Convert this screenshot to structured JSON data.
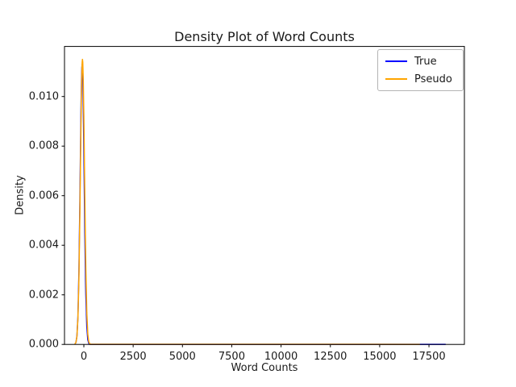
{
  "chart_data": {
    "type": "line",
    "title": "Density Plot of Word Counts",
    "xlabel": "Word Counts",
    "ylabel": "Density",
    "xlim": [
      -981,
      19297
    ],
    "ylim": [
      0,
      0.01202
    ],
    "grid": false,
    "x_tick_values": [
      0,
      2500,
      5000,
      7500,
      10000,
      12500,
      15000,
      17500
    ],
    "x_tick_labels": [
      "0",
      "2500",
      "5000",
      "7500",
      "10000",
      "12500",
      "15000",
      "17500"
    ],
    "y_tick_values": [
      0,
      0.002,
      0.004,
      0.006,
      0.008,
      0.01
    ],
    "y_tick_labels": [
      "0.000",
      "0.002",
      "0.004",
      "0.006",
      "0.008",
      "0.010"
    ],
    "axis_color": "#000000",
    "legend": {
      "position": "upper right",
      "entries": [
        {
          "label": "True",
          "color": "#0000ff"
        },
        {
          "label": "Pseudo",
          "color": "#ffa500"
        }
      ]
    },
    "series": [
      {
        "name": "True",
        "color": "#0000ff",
        "points": [
          [
            -450,
            1.45e-05
          ],
          [
            -400,
            7.91e-05
          ],
          [
            -350,
            0.000338
          ],
          [
            -300,
            0.00112
          ],
          [
            -250,
            0.0029
          ],
          [
            -200,
            0.00583
          ],
          [
            -150,
            0.00915
          ],
          [
            -120,
            0.01063
          ],
          [
            -100,
            0.01117
          ],
          [
            -85,
            0.0113
          ],
          [
            -70,
            0.01117
          ],
          [
            -50,
            0.01063
          ],
          [
            -25,
            0.00944
          ],
          [
            0,
            0.00787
          ],
          [
            25,
            0.00617
          ],
          [
            50,
            0.00454
          ],
          [
            75,
            0.00314
          ],
          [
            100,
            0.00204
          ],
          [
            150,
            0.000714
          ],
          [
            200,
            0.000194
          ],
          [
            250,
            4.13e-05
          ],
          [
            300,
            6.6e-06
          ],
          [
            400,
            2e-06
          ],
          [
            1000,
            2e-06
          ],
          [
            5000,
            2e-06
          ],
          [
            10000,
            2e-06
          ],
          [
            15000,
            2e-06
          ],
          [
            17000,
            2e-06
          ],
          [
            18000,
            2e-06
          ],
          [
            18350,
            1e-06
          ]
        ]
      },
      {
        "name": "Pseudo",
        "color": "#ffa500",
        "points": [
          [
            -460,
            1.15e-05
          ],
          [
            -400,
            8.24e-05
          ],
          [
            -350,
            0.000328
          ],
          [
            -300,
            0.00105
          ],
          [
            -250,
            0.00264
          ],
          [
            -200,
            0.00535
          ],
          [
            -150,
            0.0086
          ],
          [
            -120,
            0.01027
          ],
          [
            -100,
            0.01103
          ],
          [
            -85,
            0.01138
          ],
          [
            -70,
            0.0115
          ],
          [
            -55,
            0.01138
          ],
          [
            -30,
            0.01069
          ],
          [
            0,
            0.00921
          ],
          [
            25,
            0.00764
          ],
          [
            50,
            0.00598
          ],
          [
            75,
            0.00443
          ],
          [
            100,
            0.0031
          ],
          [
            150,
            0.00128
          ],
          [
            200,
            0.00042
          ],
          [
            250,
            0.000111
          ],
          [
            300,
            2.48e-05
          ],
          [
            350,
            4.9e-06
          ],
          [
            450,
            7e-06
          ],
          [
            600,
            6e-06
          ],
          [
            1000,
            5e-06
          ],
          [
            3000,
            5e-06
          ],
          [
            6000,
            5e-06
          ],
          [
            10000,
            5e-06
          ],
          [
            14000,
            5e-06
          ],
          [
            17040,
            4e-06
          ]
        ]
      }
    ]
  }
}
